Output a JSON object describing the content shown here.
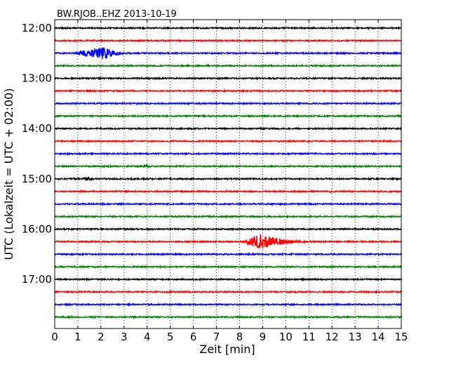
{
  "chart_data": {
    "type": "line",
    "title": "BW.RJOB..EHZ 2013-10-19",
    "xlabel": "Zeit  [min]",
    "ylabel": "UTC (Lokalzeit = UTC + 02:00)",
    "xlim": [
      0,
      15
    ],
    "x_ticks": [
      "0",
      "1",
      "2",
      "3",
      "4",
      "5",
      "6",
      "7",
      "8",
      "9",
      "10",
      "11",
      "12",
      "13",
      "14",
      "15"
    ],
    "y_ticks": [
      {
        "label": "12:00",
        "trace": 0
      },
      {
        "label": "13:00",
        "trace": 4
      },
      {
        "label": "14:00",
        "trace": 8
      },
      {
        "label": "15:00",
        "trace": 12
      },
      {
        "label": "16:00",
        "trace": 16
      },
      {
        "label": "17:00",
        "trace": 20
      }
    ],
    "grid": "vertical-dotted",
    "trace_minutes": 15,
    "colors": [
      "#000000",
      "#ff0000",
      "#0000ff",
      "#008000"
    ],
    "traces": [
      {
        "start": "12:00",
        "color": "#000000",
        "events": []
      },
      {
        "start": "12:15",
        "color": "#ff0000",
        "events": []
      },
      {
        "start": "12:30",
        "color": "#0000ff",
        "events": [
          {
            "start": 0.7,
            "end": 3.6,
            "peak": 2.1,
            "amp": 10
          }
        ]
      },
      {
        "start": "12:45",
        "color": "#008000",
        "events": [
          {
            "start": 6.1,
            "end": 6.4,
            "peak": 6.2,
            "amp": 1.5
          }
        ]
      },
      {
        "start": "13:00",
        "color": "#000000",
        "events": []
      },
      {
        "start": "13:15",
        "color": "#ff0000",
        "events": []
      },
      {
        "start": "13:30",
        "color": "#0000ff",
        "events": []
      },
      {
        "start": "13:45",
        "color": "#008000",
        "events": [
          {
            "start": 1.0,
            "end": 1.3,
            "peak": 1.1,
            "amp": 1.5
          }
        ]
      },
      {
        "start": "14:00",
        "color": "#000000",
        "events": [
          {
            "start": 3.7,
            "end": 3.9,
            "peak": 3.8,
            "amp": 1.2
          }
        ]
      },
      {
        "start": "14:15",
        "color": "#ff0000",
        "events": []
      },
      {
        "start": "14:30",
        "color": "#0000ff",
        "events": []
      },
      {
        "start": "14:45",
        "color": "#008000",
        "events": [
          {
            "start": 3.5,
            "end": 4.4,
            "peak": 4.0,
            "amp": 2.5
          },
          {
            "start": 1.0,
            "end": 1.6,
            "peak": 1.2,
            "amp": 1
          }
        ]
      },
      {
        "start": "15:00",
        "color": "#000000",
        "events": [
          {
            "start": 1.1,
            "end": 2.2,
            "peak": 1.5,
            "amp": 3
          }
        ]
      },
      {
        "start": "15:15",
        "color": "#ff0000",
        "events": [
          {
            "start": 11.8,
            "end": 12.7,
            "peak": 12.0,
            "amp": 2.5
          }
        ]
      },
      {
        "start": "15:30",
        "color": "#0000ff",
        "events": [
          {
            "start": 6.9,
            "end": 7.1,
            "peak": 7.0,
            "amp": 1.2
          }
        ]
      },
      {
        "start": "15:45",
        "color": "#008000",
        "events": []
      },
      {
        "start": "16:00",
        "color": "#000000",
        "events": [
          {
            "start": 5.0,
            "end": 5.7,
            "peak": 5.2,
            "amp": 1
          }
        ]
      },
      {
        "start": "16:15",
        "color": "#ff0000",
        "events": [
          {
            "start": 8.0,
            "end": 11.3,
            "peak": 9.0,
            "amp": 12
          }
        ]
      },
      {
        "start": "16:30",
        "color": "#0000ff",
        "events": [
          {
            "start": 7.5,
            "end": 7.7,
            "peak": 7.6,
            "amp": 1
          },
          {
            "start": 14.8,
            "end": 15.0,
            "peak": 14.9,
            "amp": 1
          }
        ]
      },
      {
        "start": "16:45",
        "color": "#008000",
        "events": []
      },
      {
        "start": "17:00",
        "color": "#000000",
        "events": [
          {
            "start": 9.8,
            "end": 10.7,
            "peak": 10.0,
            "amp": 1
          }
        ]
      },
      {
        "start": "17:15",
        "color": "#ff0000",
        "events": []
      },
      {
        "start": "17:30",
        "color": "#0000ff",
        "events": []
      },
      {
        "start": "17:45",
        "color": "#008000",
        "events": [
          {
            "start": 2.3,
            "end": 2.7,
            "peak": 2.5,
            "amp": 1
          }
        ]
      }
    ]
  }
}
